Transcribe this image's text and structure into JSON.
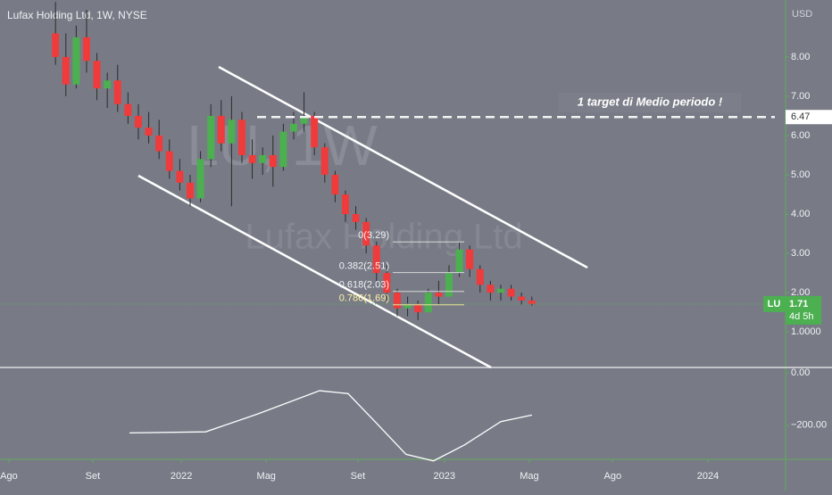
{
  "chart_data": [
    {
      "type": "candlestick",
      "title": "Lufax Holding Ltd, 1W, NYSE",
      "currency": "USD",
      "watermark": [
        "LU, 1W",
        "Lufax Holding Ltd"
      ],
      "up_color": "#4caf50",
      "down_color": "#ef3b3b",
      "x": [
        9,
        11,
        13,
        15,
        17,
        19,
        21,
        23,
        25,
        27,
        29,
        31,
        33,
        35,
        37,
        39,
        41,
        43,
        45,
        47,
        49,
        51,
        53,
        55,
        57,
        59,
        61,
        63,
        65,
        67,
        69,
        71,
        73,
        75,
        77,
        79,
        81,
        83,
        85,
        87,
        89,
        91,
        93,
        95,
        97,
        99,
        101
      ],
      "open": [
        8.6,
        8.0,
        7.3,
        8.5,
        7.9,
        7.2,
        7.4,
        6.8,
        6.5,
        6.2,
        6.0,
        5.6,
        5.1,
        4.8,
        4.4,
        5.4,
        6.5,
        5.8,
        6.4,
        5.5,
        5.3,
        5.5,
        5.2,
        6.1,
        6.3,
        6.5,
        5.7,
        5.0,
        4.5,
        4.0,
        3.8,
        3.2,
        2.5,
        2.0,
        1.6,
        1.7,
        1.5,
        2.0,
        1.9,
        2.5,
        3.1,
        2.6,
        2.2,
        2.0,
        2.1,
        1.9,
        1.8
      ],
      "high": [
        9.4,
        8.6,
        8.8,
        9.2,
        8.1,
        7.6,
        7.8,
        7.1,
        6.8,
        6.6,
        6.4,
        5.9,
        5.4,
        5.0,
        5.6,
        6.8,
        6.9,
        7.0,
        6.6,
        5.9,
        5.7,
        6.0,
        6.3,
        6.6,
        7.1,
        6.6,
        5.8,
        5.1,
        4.6,
        4.2,
        3.9,
        3.3,
        2.7,
        2.1,
        1.9,
        1.8,
        2.1,
        2.3,
        2.7,
        3.3,
        3.2,
        2.7,
        2.3,
        2.2,
        2.2,
        2.0,
        1.9
      ],
      "low": [
        7.8,
        7.0,
        7.2,
        7.6,
        6.9,
        6.7,
        6.6,
        6.3,
        5.9,
        5.8,
        5.4,
        4.9,
        4.6,
        4.2,
        4.3,
        5.2,
        5.6,
        4.2,
        5.3,
        4.9,
        5.0,
        4.7,
        5.1,
        5.9,
        6.1,
        5.5,
        4.8,
        4.3,
        3.8,
        3.6,
        3.0,
        2.3,
        1.8,
        1.4,
        1.4,
        1.3,
        1.5,
        1.7,
        1.9,
        2.4,
        2.4,
        2.0,
        1.8,
        1.8,
        1.8,
        1.7,
        1.67
      ],
      "close": [
        8.0,
        7.3,
        8.5,
        7.9,
        7.2,
        7.4,
        6.8,
        6.5,
        6.2,
        6.0,
        5.6,
        5.1,
        4.8,
        4.4,
        5.4,
        6.5,
        5.8,
        6.4,
        5.5,
        5.3,
        5.5,
        5.2,
        6.1,
        6.3,
        6.5,
        5.7,
        5.0,
        4.5,
        4.0,
        3.8,
        3.2,
        2.5,
        2.0,
        1.6,
        1.7,
        1.5,
        2.0,
        1.9,
        2.5,
        3.1,
        2.6,
        2.2,
        2.0,
        2.1,
        1.9,
        1.8,
        1.71
      ],
      "xlim": [
        -1.72,
        150
      ],
      "xticks": [
        {
          "value": 0,
          "label": "Ago"
        },
        {
          "value": 16.2,
          "label": "Set"
        },
        {
          "value": 33.3,
          "label": "2022"
        },
        {
          "value": 49.7,
          "label": "Mag"
        },
        {
          "value": 67.4,
          "label": "Set"
        },
        {
          "value": 84.1,
          "label": "2023"
        },
        {
          "value": 100.5,
          "label": "Mag"
        },
        {
          "value": 116.6,
          "label": "Ago"
        },
        {
          "value": 135,
          "label": "2024"
        }
      ],
      "ylim": [
        0.05,
        9.45
      ],
      "yticks": [
        {
          "value": 8,
          "label": "8.00"
        },
        {
          "value": 7,
          "label": "7.00"
        },
        {
          "value": 6,
          "label": "6.00"
        },
        {
          "value": 5,
          "label": "5.00"
        },
        {
          "value": 4,
          "label": "4.00"
        },
        {
          "value": 3,
          "label": "3.00"
        },
        {
          "value": 2,
          "label": "2.00"
        },
        {
          "value": 1,
          "label": "1.0000"
        }
      ],
      "fibonacci": [
        {
          "value": 3.29,
          "label": "0(3.29)"
        },
        {
          "value": 2.51,
          "label": "0.382(2.51)"
        },
        {
          "value": 2.03,
          "label": "0.618(2.03)"
        },
        {
          "value": 1.69,
          "label": "0.786(1.69)"
        }
      ],
      "target": {
        "value": 6.47,
        "label": "6.47",
        "text": "1 target di Medio periodo !"
      },
      "last_price": {
        "symbol": "LU",
        "value": 1.71,
        "countdown": "4d 5h"
      }
    },
    {
      "type": "line",
      "color": "#ffffff",
      "x": [
        23.3,
        38,
        48,
        60,
        65.5,
        70.7,
        76.7,
        82,
        88,
        95,
        101
      ],
      "values": [
        -229,
        -225,
        -157,
        -68,
        -79,
        -186,
        -311,
        -336,
        -275,
        -186,
        -161
      ],
      "ylim": [
        -330,
        14
      ],
      "yticks": [
        {
          "value": 0,
          "label": "0.00"
        },
        {
          "value": -200,
          "label": "−200.00"
        }
      ]
    }
  ]
}
